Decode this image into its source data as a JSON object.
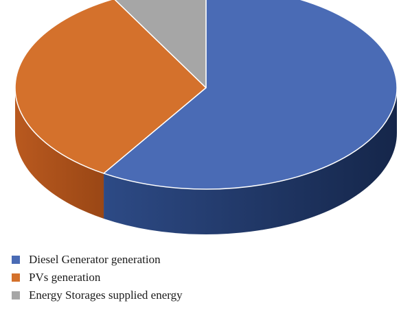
{
  "chart_data": {
    "type": "pie",
    "title": "",
    "style": "3d",
    "categories": [
      "Diesel Generator generation",
      "PVs generation",
      "Energy Storages supplied energy"
    ],
    "values": [
      59,
      33,
      8
    ],
    "unit": "percent (estimated)",
    "colors": [
      "#4a6bb5",
      "#d4712c",
      "#a6a6a6"
    ],
    "legend_position": "bottom-left"
  },
  "legend": {
    "items": [
      {
        "label": "Diesel Generator generation",
        "color": "#4a6bb5"
      },
      {
        "label": "PVs generation",
        "color": "#d4712c"
      },
      {
        "label": "Energy Storages supplied energy",
        "color": "#a6a6a6"
      }
    ]
  }
}
